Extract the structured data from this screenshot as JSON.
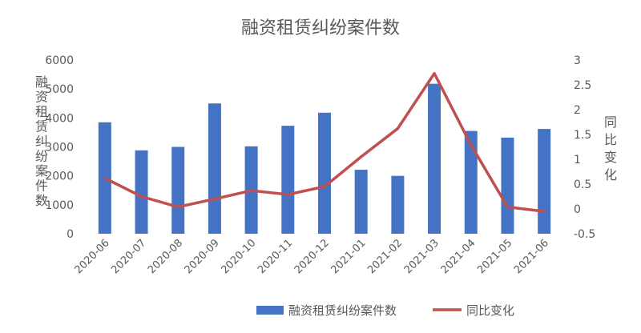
{
  "chart_data": {
    "type": "bar",
    "title": "融资租赁纠纷案件数",
    "categories": [
      "2020-06",
      "2020-07",
      "2020-08",
      "2020-09",
      "2020-10",
      "2020-11",
      "2020-12",
      "2021-01",
      "2021-02",
      "2021-03",
      "2021-04",
      "2021-05",
      "2021-06"
    ],
    "series": [
      {
        "name": "融资租赁纠纷案件数",
        "type": "bar",
        "axis": "left",
        "color": "#4472C4",
        "values": [
          3850,
          2880,
          3000,
          4500,
          3020,
          3730,
          4180,
          2210,
          2000,
          5180,
          3550,
          3320,
          3620
        ]
      },
      {
        "name": "同比变化",
        "type": "line",
        "axis": "right",
        "color": "#C0504D",
        "values": [
          0.62,
          0.25,
          0.04,
          0.2,
          0.37,
          0.29,
          0.45,
          1.05,
          1.62,
          2.73,
          1.29,
          0.04,
          -0.05
        ]
      }
    ],
    "ylabel": "融资租赁纠纷案件数",
    "y2label": "同比变化",
    "ylim": [
      0,
      6000
    ],
    "yticks": [
      0,
      1000,
      2000,
      3000,
      4000,
      5000,
      6000
    ],
    "y2lim": [
      -0.5,
      3
    ],
    "y2ticks": [
      -0.5,
      0,
      0.5,
      1,
      1.5,
      2,
      2.5,
      3
    ],
    "y2tick_labels": [
      "-0.5",
      "0",
      "0.5",
      "1",
      "1.5",
      "2",
      "2.5",
      "3"
    ],
    "grid": false,
    "legend": "bottom"
  }
}
